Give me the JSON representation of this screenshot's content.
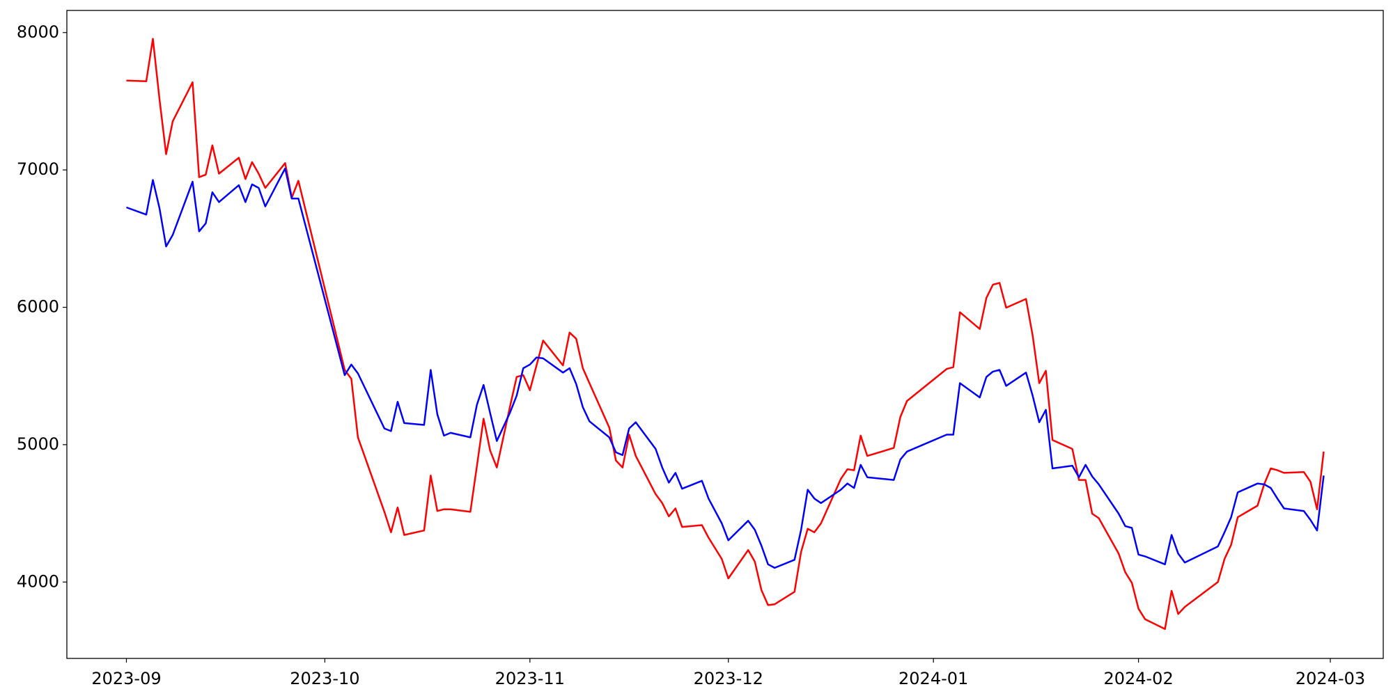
{
  "chart_data": {
    "type": "line",
    "x": [
      0,
      3,
      4,
      5,
      6,
      7,
      10,
      11,
      12,
      13,
      14,
      17,
      18,
      19,
      20,
      21,
      24,
      25,
      26,
      33,
      34,
      35,
      39,
      40,
      41,
      42,
      45,
      46,
      47,
      48,
      49,
      52,
      53,
      54,
      55,
      56,
      58,
      59,
      60,
      61,
      62,
      63,
      66,
      67,
      68,
      69,
      70,
      73,
      74,
      75,
      76,
      77,
      80,
      81,
      82,
      83,
      84,
      87,
      88,
      90,
      91,
      94,
      95,
      96,
      97,
      98,
      101,
      102,
      103,
      104,
      105,
      108,
      109,
      110,
      111,
      112,
      116,
      117,
      118,
      124,
      125,
      126,
      129,
      130,
      131,
      132,
      133,
      136,
      137,
      138,
      139,
      140,
      143,
      144,
      145,
      146,
      147,
      150,
      151,
      152,
      153,
      154,
      157,
      158,
      159,
      160,
      165,
      166,
      167,
      168,
      171,
      172,
      173,
      174,
      175,
      178,
      179,
      180,
      181
    ],
    "series": [
      {
        "color": "#ff0000",
        "values": [
          7651,
          7645,
          7955,
          7515,
          7115,
          7354,
          7638,
          6947,
          6966,
          7179,
          6973,
          7089,
          6934,
          7057,
          6973,
          6869,
          7050,
          6798,
          6921,
          5544,
          5480,
          5053,
          4511,
          4362,
          4543,
          4343,
          4375,
          4775,
          4517,
          4530,
          4530,
          4511,
          4847,
          5189,
          4956,
          4834,
          5279,
          5493,
          5506,
          5396,
          5577,
          5758,
          5577,
          5816,
          5771,
          5557,
          5448,
          5124,
          4885,
          4834,
          5073,
          4918,
          4640,
          4575,
          4478,
          4536,
          4401,
          4414,
          4323,
          4168,
          4026,
          4233,
          4149,
          3942,
          3832,
          3838,
          3929,
          4220,
          4388,
          4362,
          4427,
          4750,
          4821,
          4814,
          5066,
          4918,
          4976,
          5202,
          5318,
          5551,
          5564,
          5964,
          5842,
          6068,
          6165,
          6178,
          5997,
          6061,
          5796,
          5448,
          5538,
          5034,
          4969,
          4743,
          4743,
          4498,
          4465,
          4207,
          4071,
          3994,
          3806,
          3729,
          3658,
          3936,
          3767,
          3819,
          4000,
          4168,
          4271,
          4472,
          4556,
          4711,
          4827,
          4814,
          4795,
          4801,
          4730,
          4530,
          4950
        ]
      },
      {
        "color": "#0000ff",
        "values": [
          6727,
          6675,
          6927,
          6721,
          6443,
          6527,
          6914,
          6553,
          6611,
          6837,
          6766,
          6889,
          6766,
          6895,
          6869,
          6734,
          7011,
          6792,
          6792,
          5506,
          5583,
          5519,
          5118,
          5099,
          5312,
          5157,
          5144,
          5544,
          5221,
          5066,
          5086,
          5053,
          5292,
          5435,
          5228,
          5027,
          5234,
          5357,
          5557,
          5583,
          5635,
          5628,
          5525,
          5557,
          5441,
          5273,
          5170,
          5053,
          4944,
          4924,
          5118,
          5163,
          4969,
          4834,
          4724,
          4795,
          4679,
          4737,
          4608,
          4427,
          4304,
          4446,
          4381,
          4265,
          4129,
          4103,
          4162,
          4381,
          4672,
          4608,
          4575,
          4672,
          4717,
          4685,
          4853,
          4763,
          4743,
          4892,
          4950,
          5073,
          5073,
          5448,
          5344,
          5493,
          5532,
          5544,
          5428,
          5525,
          5357,
          5163,
          5254,
          4827,
          4847,
          4763,
          4853,
          4769,
          4711,
          4498,
          4407,
          4394,
          4200,
          4187,
          4129,
          4343,
          4207,
          4142,
          4259,
          4362,
          4472,
          4653,
          4717,
          4711,
          4685,
          4608,
          4536,
          4517,
          4452,
          4375,
          4775
        ]
      }
    ],
    "xlim": [
      -9,
      190
    ],
    "xticks": [
      {
        "value": 0,
        "label": "2023-09"
      },
      {
        "value": 30,
        "label": "2023-10"
      },
      {
        "value": 61,
        "label": "2023-11"
      },
      {
        "value": 91,
        "label": "2023-12"
      },
      {
        "value": 122,
        "label": "2024-01"
      },
      {
        "value": 153,
        "label": "2024-02"
      },
      {
        "value": 182,
        "label": "2024-03"
      }
    ],
    "ylim": [
      3444,
      8161
    ],
    "yticks": [
      4000,
      5000,
      6000,
      7000,
      8000
    ]
  }
}
